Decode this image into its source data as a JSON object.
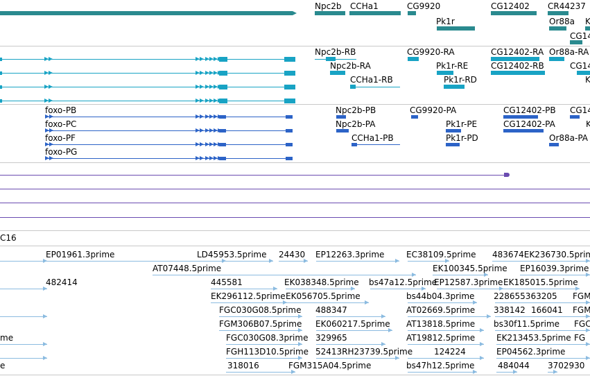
{
  "colors": {
    "gene": "#2a8a8f",
    "transcript": "#18a3c4",
    "protein": "#2c63c7",
    "misc": "#6a4bb0",
    "est": "#8bbbe0",
    "separator": "#c8c8c8"
  },
  "tracks": {
    "gene": {
      "labels": [
        "Npc2b",
        "CCHa1",
        "CG9920",
        "CG12402",
        "CR44237",
        "Pk1r",
        "Or88a",
        "CG14",
        "K"
      ]
    },
    "transcript": {
      "labels": [
        "Npc2b-RB",
        "CG9920-RA",
        "CG12402-RA",
        "Or88a-RA",
        "CG14",
        "Npc2b-RA",
        "Pk1r-RE",
        "CG12402-RB",
        "CG14",
        "CCHa1-RB",
        "Pk1r-RD",
        "K"
      ]
    },
    "protein": {
      "labels": [
        "foxo-PB",
        "Npc2b-PB",
        "CG9920-PA",
        "CG12402-PB",
        "CG14",
        "foxo-PC",
        "Npc2b-PA",
        "Pk1r-PE",
        "CG12402-PA",
        "K",
        "foxo-PF",
        "CCHa1-PB",
        "Pk1r-PD",
        "Or88a-PA",
        "foxo-PG"
      ]
    },
    "misc": {
      "labels": [
        "C16"
      ]
    },
    "est": {
      "labels": [
        "EP01961.3prime",
        "LD45953.5prime",
        "24430",
        "EP12263.3prime",
        "EC38109.5prime",
        "483674EK236730.5prime",
        "AT07448.5prime",
        "EK100345.5prime",
        "EP16039.3prime",
        "482414",
        "445581",
        "EK038348.5prime",
        "bs47a12.5prime",
        "EP12587.3prime",
        "EK185015.5prime",
        "EK296112.5prime",
        "EK056705.5prime",
        "bs44b04.3prime",
        "228655363205",
        "FGM",
        "FGC030G08.5prime",
        "488347",
        "AT02669.5prime",
        "338142",
        "166041",
        "FGM",
        "FGM306B07.5prime",
        "EK060217.5prime",
        "AT13818.5prime",
        "bs30f11.5prime",
        "FGC",
        "me",
        "FGC030G08.3prime",
        "329965",
        "AT19812.5prime",
        "EK213453.5prime",
        "FG",
        "FGH113D10.5prime",
        "52413RH23739.5prime",
        "124224",
        "EP04562.3prime",
        "e",
        "318016",
        "FGM315A04.5prime",
        "bs47h12.5prime",
        "484044",
        "3702930"
      ]
    }
  }
}
